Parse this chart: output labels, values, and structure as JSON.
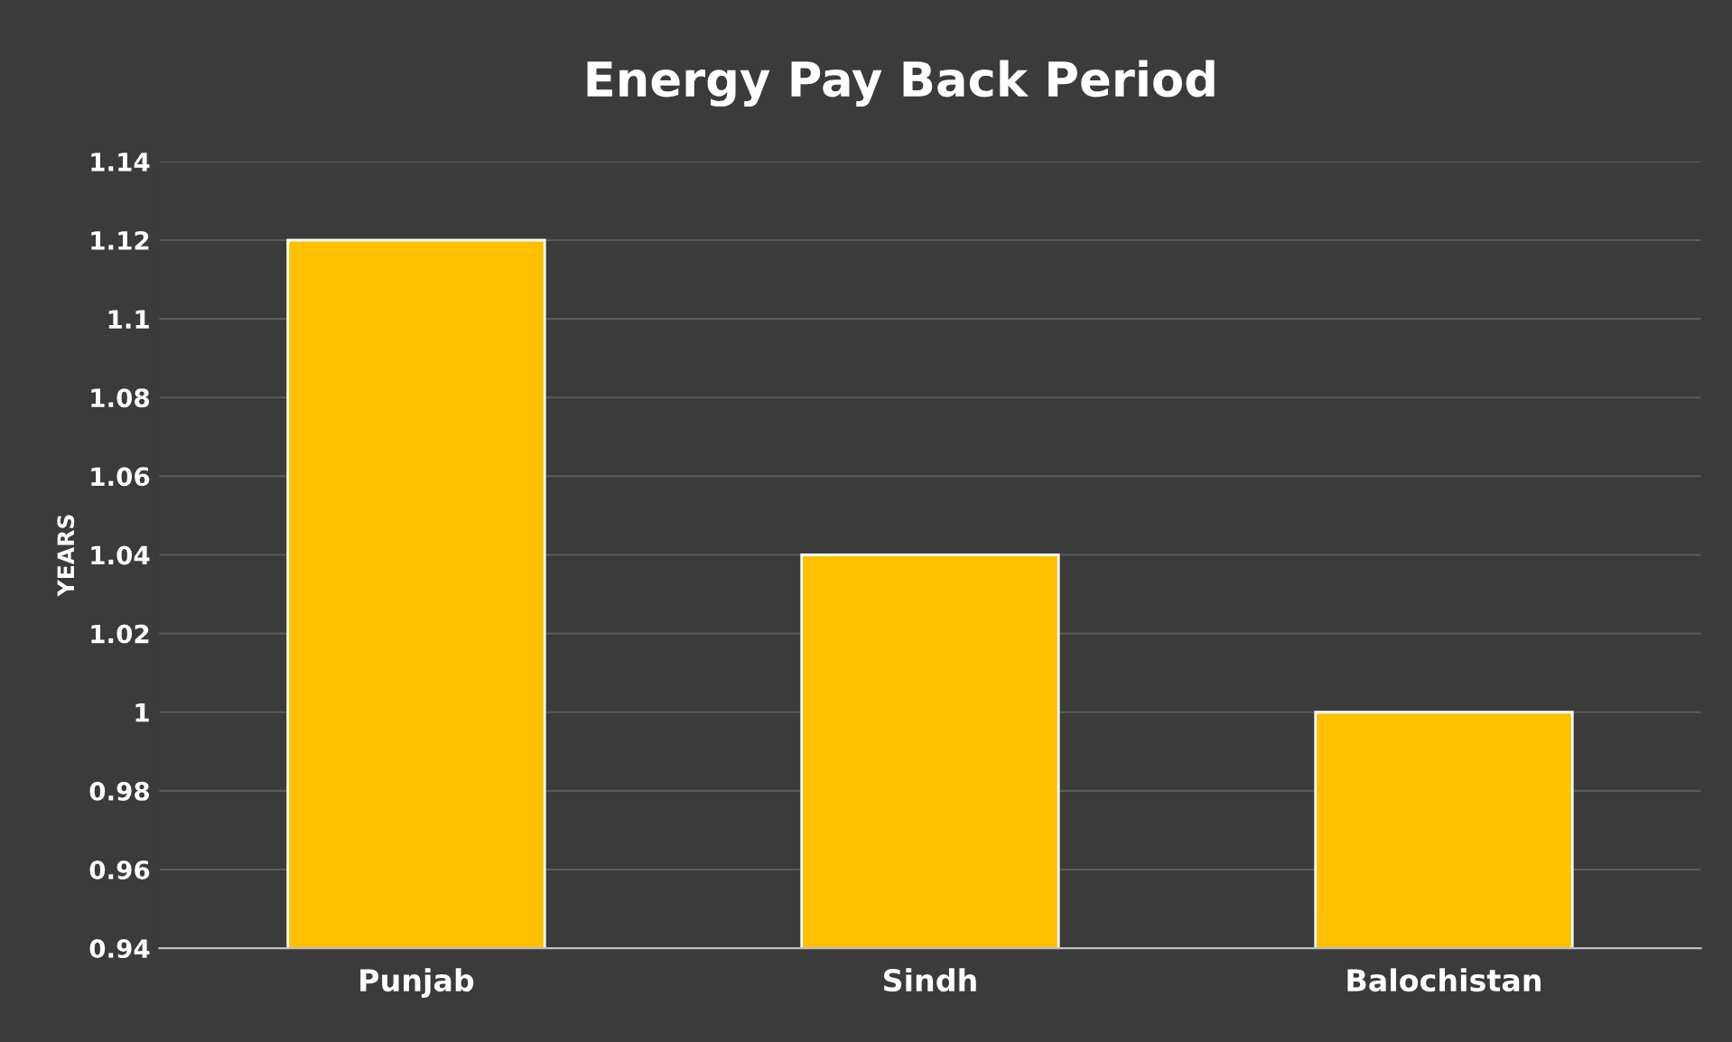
{
  "chart_data": {
    "type": "bar",
    "title": "Energy Pay Back Period",
    "ylabel": "YEARS",
    "categories": [
      "Punjab",
      "Sindh",
      "Balochistan"
    ],
    "values": [
      1.12,
      1.04,
      1.0
    ],
    "color": "#ffc000",
    "ylim": [
      0.94,
      1.14
    ],
    "yticks": [
      0.94,
      0.96,
      0.98,
      1,
      1.02,
      1.04,
      1.06,
      1.08,
      1.1,
      1.12,
      1.14
    ],
    "grid": "y"
  }
}
